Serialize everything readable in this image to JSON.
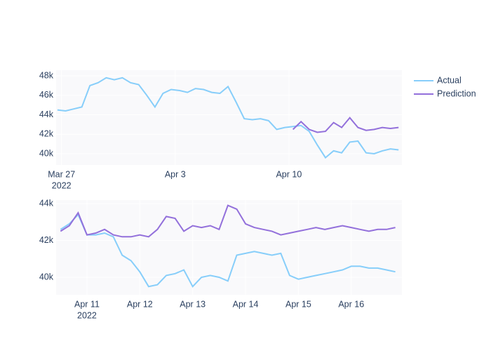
{
  "chart_data": [
    {
      "type": "line",
      "legend_position": "right",
      "grid": true,
      "plot_bg": "#f9f9fb",
      "grid_color": "#ffffff",
      "x": [
        "2022-03-26T18:00",
        "2022-03-27T06:00",
        "2022-03-27T18:00",
        "2022-03-28T06:00",
        "2022-03-28T18:00",
        "2022-03-29T06:00",
        "2022-03-29T18:00",
        "2022-03-30T06:00",
        "2022-03-30T18:00",
        "2022-03-31T06:00",
        "2022-03-31T18:00",
        "2022-04-01T06:00",
        "2022-04-01T18:00",
        "2022-04-02T06:00",
        "2022-04-02T18:00",
        "2022-04-03T06:00",
        "2022-04-03T18:00",
        "2022-04-04T06:00",
        "2022-04-04T18:00",
        "2022-04-05T06:00",
        "2022-04-05T18:00",
        "2022-04-06T06:00",
        "2022-04-06T18:00",
        "2022-04-07T06:00",
        "2022-04-07T18:00",
        "2022-04-08T06:00",
        "2022-04-08T18:00",
        "2022-04-09T06:00",
        "2022-04-09T18:00",
        "2022-04-10T06:00",
        "2022-04-10T18:00",
        "2022-04-11T06:00",
        "2022-04-11T18:00",
        "2022-04-12T06:00",
        "2022-04-12T18:00",
        "2022-04-13T06:00",
        "2022-04-13T18:00",
        "2022-04-14T06:00",
        "2022-04-14T18:00",
        "2022-04-15T06:00",
        "2022-04-15T18:00",
        "2022-04-16T06:00",
        "2022-04-16T18:00"
      ],
      "series": [
        {
          "name": "Actual",
          "color": "#87cefa",
          "values": [
            44500,
            44400,
            44600,
            44800,
            47000,
            47300,
            47800,
            47600,
            47800,
            47300,
            47100,
            46000,
            44800,
            46200,
            46600,
            46500,
            46300,
            46700,
            46600,
            46300,
            46200,
            46900,
            45300,
            43600,
            43500,
            43600,
            43400,
            42500,
            42700,
            42800,
            42900,
            42300,
            40900,
            39600,
            40300,
            40100,
            41200,
            41300,
            40100,
            40000,
            40300,
            40500,
            40400
          ]
        },
        {
          "name": "Prediction",
          "color": "#9370db",
          "values": [
            null,
            null,
            null,
            null,
            null,
            null,
            null,
            null,
            null,
            null,
            null,
            null,
            null,
            null,
            null,
            null,
            null,
            null,
            null,
            null,
            null,
            null,
            null,
            null,
            null,
            null,
            null,
            null,
            null,
            42500,
            43300,
            42500,
            42200,
            42300,
            43200,
            42700,
            43700,
            42700,
            42400,
            42500,
            42700,
            42600,
            42700
          ]
        }
      ],
      "xlim": [
        "2022-03-26T16:00",
        "2022-04-16T23:00"
      ],
      "xticks": [
        {
          "value": "2022-03-27",
          "label": "Mar 27"
        },
        {
          "value": "2022-04-03",
          "label": "Apr 3"
        },
        {
          "value": "2022-04-10",
          "label": "Apr 10"
        }
      ],
      "xtick_year": "2022",
      "ylim": [
        38850,
        48580
      ],
      "yticks": [
        {
          "value": 40000,
          "label": "40k"
        },
        {
          "value": 42000,
          "label": "42k"
        },
        {
          "value": 44000,
          "label": "44k"
        },
        {
          "value": 46000,
          "label": "46k"
        },
        {
          "value": 48000,
          "label": "48k"
        }
      ]
    },
    {
      "type": "line",
      "grid": true,
      "plot_bg": "#f9f9fb",
      "grid_color": "#ffffff",
      "x": [
        "2022-04-10T12:00",
        "2022-04-10T16:00",
        "2022-04-10T20:00",
        "2022-04-11T00:00",
        "2022-04-11T04:00",
        "2022-04-11T08:00",
        "2022-04-11T12:00",
        "2022-04-11T16:00",
        "2022-04-11T20:00",
        "2022-04-12T00:00",
        "2022-04-12T04:00",
        "2022-04-12T08:00",
        "2022-04-12T12:00",
        "2022-04-12T16:00",
        "2022-04-12T20:00",
        "2022-04-13T00:00",
        "2022-04-13T04:00",
        "2022-04-13T08:00",
        "2022-04-13T12:00",
        "2022-04-13T16:00",
        "2022-04-13T20:00",
        "2022-04-14T00:00",
        "2022-04-14T04:00",
        "2022-04-14T08:00",
        "2022-04-14T12:00",
        "2022-04-14T16:00",
        "2022-04-14T20:00",
        "2022-04-15T00:00",
        "2022-04-15T04:00",
        "2022-04-15T08:00",
        "2022-04-15T12:00",
        "2022-04-15T16:00",
        "2022-04-15T20:00",
        "2022-04-16T00:00",
        "2022-04-16T04:00",
        "2022-04-16T08:00",
        "2022-04-16T12:00",
        "2022-04-16T16:00",
        "2022-04-16T20:00"
      ],
      "series": [
        {
          "color": "#87cefa",
          "values": [
            42600,
            42900,
            43400,
            42300,
            42300,
            42400,
            42200,
            41200,
            40900,
            40300,
            39500,
            39600,
            40100,
            40200,
            40400,
            39500,
            40000,
            40100,
            40000,
            39800,
            41200,
            41300,
            41400,
            41300,
            41200,
            41300,
            40100,
            39900,
            40000,
            40100,
            40200,
            40300,
            40400,
            40600,
            40600,
            40500,
            40500,
            40400,
            40300
          ]
        },
        {
          "color": "#9370db",
          "values": [
            42500,
            42800,
            43500,
            42300,
            42400,
            42600,
            42300,
            42200,
            42200,
            42300,
            42200,
            42600,
            43300,
            43200,
            42500,
            42800,
            42700,
            42800,
            42600,
            43900,
            43700,
            42900,
            42700,
            42600,
            42500,
            42300,
            42400,
            42500,
            42600,
            42700,
            42600,
            42700,
            42800,
            42700,
            42600,
            42500,
            42600,
            42600,
            42700
          ]
        }
      ],
      "xlim": [
        "2022-04-10T10:00",
        "2022-04-16T23:00"
      ],
      "xticks": [
        {
          "value": "2022-04-11",
          "label": "Apr 11"
        },
        {
          "value": "2022-04-12",
          "label": "Apr 12"
        },
        {
          "value": "2022-04-13",
          "label": "Apr 13"
        },
        {
          "value": "2022-04-14",
          "label": "Apr 14"
        },
        {
          "value": "2022-04-15",
          "label": "Apr 15"
        },
        {
          "value": "2022-04-16",
          "label": "Apr 16"
        }
      ],
      "xtick_year": "2022",
      "ylim": [
        39050,
        44190
      ],
      "yticks": [
        {
          "value": 40000,
          "label": "40k"
        },
        {
          "value": 42000,
          "label": "42k"
        },
        {
          "value": 44000,
          "label": "44k"
        }
      ]
    }
  ]
}
